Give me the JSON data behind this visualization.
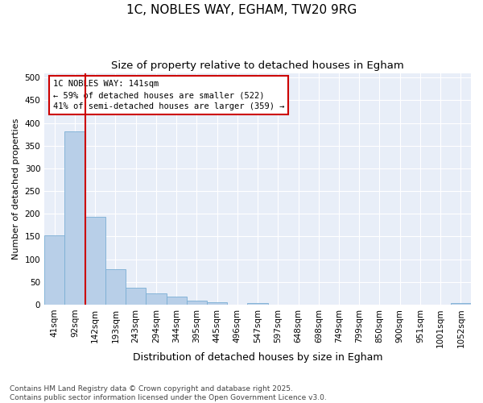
{
  "title": "1C, NOBLES WAY, EGHAM, TW20 9RG",
  "subtitle": "Size of property relative to detached houses in Egham",
  "xlabel": "Distribution of detached houses by size in Egham",
  "ylabel": "Number of detached properties",
  "categories": [
    "41sqm",
    "92sqm",
    "142sqm",
    "193sqm",
    "243sqm",
    "294sqm",
    "344sqm",
    "395sqm",
    "445sqm",
    "496sqm",
    "547sqm",
    "597sqm",
    "648sqm",
    "698sqm",
    "749sqm",
    "799sqm",
    "850sqm",
    "900sqm",
    "951sqm",
    "1001sqm",
    "1052sqm"
  ],
  "values": [
    153,
    381,
    193,
    78,
    38,
    25,
    18,
    8,
    5,
    0,
    3,
    0,
    0,
    0,
    0,
    0,
    0,
    0,
    0,
    0,
    3
  ],
  "bar_color": "#b8cfe8",
  "bar_edge_color": "#7aaed4",
  "background_color": "#e8eef8",
  "grid_color": "#ffffff",
  "annotation_box_text": "1C NOBLES WAY: 141sqm\n← 59% of detached houses are smaller (522)\n41% of semi-detached houses are larger (359) →",
  "annotation_box_color": "#cc0000",
  "vline_color": "#cc0000",
  "ylim": [
    0,
    510
  ],
  "yticks": [
    0,
    50,
    100,
    150,
    200,
    250,
    300,
    350,
    400,
    450,
    500
  ],
  "footnote": "Contains HM Land Registry data © Crown copyright and database right 2025.\nContains public sector information licensed under the Open Government Licence v3.0.",
  "title_fontsize": 11,
  "subtitle_fontsize": 9.5,
  "xlabel_fontsize": 9,
  "ylabel_fontsize": 8,
  "tick_fontsize": 7.5,
  "annot_fontsize": 7.5,
  "footnote_fontsize": 6.5
}
